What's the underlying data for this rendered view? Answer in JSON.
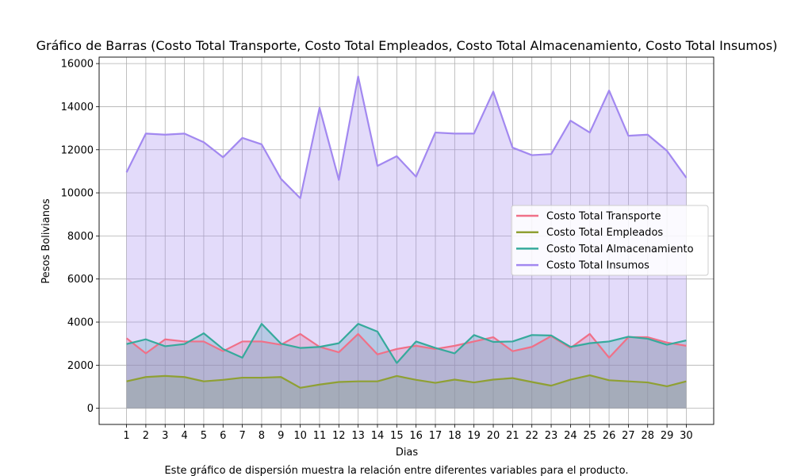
{
  "chart_data": {
    "type": "area",
    "title": "Gráfico de Barras (Costo Total Transporte, Costo Total Empleados, Costo Total Almacenamiento, Costo Total Insumos)",
    "xlabel": "Dias",
    "ylabel": "Pesos Bolivianos",
    "caption": "Este gráfico de dispersión muestra la relación entre diferentes variables para el producto.",
    "x": [
      1,
      2,
      3,
      4,
      5,
      6,
      7,
      8,
      9,
      10,
      11,
      12,
      13,
      14,
      15,
      16,
      17,
      18,
      19,
      20,
      21,
      22,
      23,
      24,
      25,
      26,
      27,
      28,
      29,
      30
    ],
    "ylim": [
      -750,
      16300
    ],
    "yticks": [
      0,
      2000,
      4000,
      6000,
      8000,
      10000,
      12000,
      14000,
      16000
    ],
    "grid": true,
    "legend_position": "center-right",
    "series": [
      {
        "name": "Costo Total Transporte",
        "color": "#f07088",
        "values": [
          3250,
          2550,
          3200,
          3100,
          3100,
          2650,
          3100,
          3100,
          2950,
          3450,
          2850,
          2600,
          3450,
          2500,
          2750,
          2900,
          2750,
          2900,
          3100,
          3300,
          2650,
          2850,
          3350,
          2800,
          3450,
          2350,
          3300,
          3300,
          3050,
          2900
        ]
      },
      {
        "name": "Costo Total Empleados",
        "color": "#8fa033",
        "values": [
          1250,
          1450,
          1500,
          1450,
          1250,
          1320,
          1420,
          1420,
          1450,
          950,
          1100,
          1220,
          1250,
          1250,
          1500,
          1320,
          1180,
          1330,
          1200,
          1330,
          1400,
          1220,
          1050,
          1330,
          1530,
          1300,
          1250,
          1200,
          1020,
          1250
        ]
      },
      {
        "name": "Costo Total Almacenamiento",
        "color": "#36aa9c",
        "values": [
          2980,
          3200,
          2880,
          2980,
          3480,
          2750,
          2350,
          3920,
          3000,
          2800,
          2850,
          3020,
          3920,
          3560,
          2100,
          3100,
          2800,
          2550,
          3400,
          3080,
          3100,
          3400,
          3380,
          2850,
          3020,
          3100,
          3320,
          3230,
          2950,
          3150
        ]
      },
      {
        "name": "Costo Total Insumos",
        "color": "#a288f0",
        "values": [
          10950,
          12750,
          12700,
          12750,
          12350,
          11650,
          12550,
          12250,
          10650,
          9750,
          13950,
          10600,
          15400,
          11250,
          11700,
          10750,
          12800,
          12750,
          12750,
          14700,
          12100,
          11750,
          11800,
          13350,
          12800,
          14750,
          12650,
          12700,
          11950,
          10700
        ]
      }
    ]
  }
}
